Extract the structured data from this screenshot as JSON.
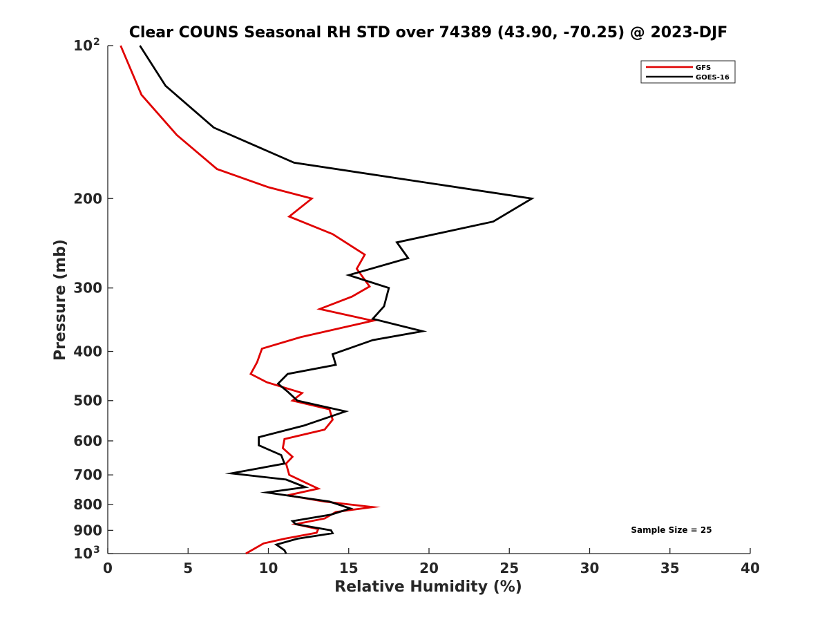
{
  "chart_data": {
    "type": "line",
    "title": "Clear COUNS Seasonal RH STD over 74389 (43.90, -70.25) @ 2023-DJF",
    "xlabel": "Relative Humidity (%)",
    "ylabel": "Pressure (mb)",
    "xlim": [
      0,
      40
    ],
    "ylim": [
      100,
      1000
    ],
    "yscale": "log",
    "y_reversed": true,
    "xticks": [
      0,
      5,
      10,
      15,
      20,
      25,
      30,
      35,
      40
    ],
    "yticks": [
      {
        "value": 100,
        "label": "10",
        "sup": "2"
      },
      {
        "value": 200,
        "label": "200",
        "sup": ""
      },
      {
        "value": 300,
        "label": "300",
        "sup": ""
      },
      {
        "value": 400,
        "label": "400",
        "sup": ""
      },
      {
        "value": 500,
        "label": "500",
        "sup": ""
      },
      {
        "value": 600,
        "label": "600",
        "sup": ""
      },
      {
        "value": 700,
        "label": "700",
        "sup": ""
      },
      {
        "value": 800,
        "label": "800",
        "sup": ""
      },
      {
        "value": 900,
        "label": "900",
        "sup": ""
      },
      {
        "value": 1000,
        "label": "10",
        "sup": "3"
      }
    ],
    "legend_position": "top-right",
    "annotation": "Sample Size = 25",
    "series": [
      {
        "name": "GFS",
        "color": "#e00000",
        "points": [
          [
            0.8,
            100
          ],
          [
            2.1,
            125
          ],
          [
            4.3,
            150
          ],
          [
            6.8,
            175
          ],
          [
            10.0,
            190
          ],
          [
            12.7,
            200
          ],
          [
            11.3,
            217
          ],
          [
            14.0,
            235
          ],
          [
            16.0,
            258
          ],
          [
            15.5,
            275
          ],
          [
            16.3,
            298
          ],
          [
            15.2,
            312
          ],
          [
            13.2,
            330
          ],
          [
            16.5,
            348
          ],
          [
            12.0,
            375
          ],
          [
            9.6,
            395
          ],
          [
            9.3,
            420
          ],
          [
            8.9,
            443
          ],
          [
            9.9,
            460
          ],
          [
            12.1,
            483
          ],
          [
            11.5,
            500
          ],
          [
            13.8,
            520
          ],
          [
            14.0,
            545
          ],
          [
            13.5,
            570
          ],
          [
            11.0,
            595
          ],
          [
            10.9,
            620
          ],
          [
            11.5,
            645
          ],
          [
            11.1,
            665
          ],
          [
            11.3,
            700
          ],
          [
            12.3,
            725
          ],
          [
            13.1,
            745
          ],
          [
            11.2,
            768
          ],
          [
            13.5,
            790
          ],
          [
            16.5,
            810
          ],
          [
            14.2,
            828
          ],
          [
            13.5,
            853
          ],
          [
            11.7,
            875
          ],
          [
            13.1,
            895
          ],
          [
            13.0,
            910
          ],
          [
            11.0,
            935
          ],
          [
            9.7,
            955
          ],
          [
            8.6,
            1000
          ]
        ]
      },
      {
        "name": "GOES-16",
        "color": "#000000",
        "points": [
          [
            2.0,
            100
          ],
          [
            3.6,
            120
          ],
          [
            6.6,
            145
          ],
          [
            11.6,
            170
          ],
          [
            26.4,
            200
          ],
          [
            24.0,
            222
          ],
          [
            18.0,
            244
          ],
          [
            18.7,
            262
          ],
          [
            15.0,
            283
          ],
          [
            17.5,
            300
          ],
          [
            17.2,
            326
          ],
          [
            16.5,
            345
          ],
          [
            19.6,
            365
          ],
          [
            16.5,
            380
          ],
          [
            14.0,
            405
          ],
          [
            14.2,
            425
          ],
          [
            11.2,
            443
          ],
          [
            10.6,
            463
          ],
          [
            11.2,
            480
          ],
          [
            11.8,
            500
          ],
          [
            14.8,
            525
          ],
          [
            12.2,
            560
          ],
          [
            9.4,
            590
          ],
          [
            9.4,
            612
          ],
          [
            10.8,
            640
          ],
          [
            11.0,
            665
          ],
          [
            7.7,
            695
          ],
          [
            11.1,
            715
          ],
          [
            12.3,
            740
          ],
          [
            9.9,
            758
          ],
          [
            13.8,
            790
          ],
          [
            15.1,
            815
          ],
          [
            13.9,
            838
          ],
          [
            11.5,
            863
          ],
          [
            11.7,
            875
          ],
          [
            13.9,
            900
          ],
          [
            14.0,
            912
          ],
          [
            11.8,
            935
          ],
          [
            10.5,
            960
          ],
          [
            11.0,
            985
          ],
          [
            11.1,
            1000
          ]
        ]
      }
    ]
  }
}
